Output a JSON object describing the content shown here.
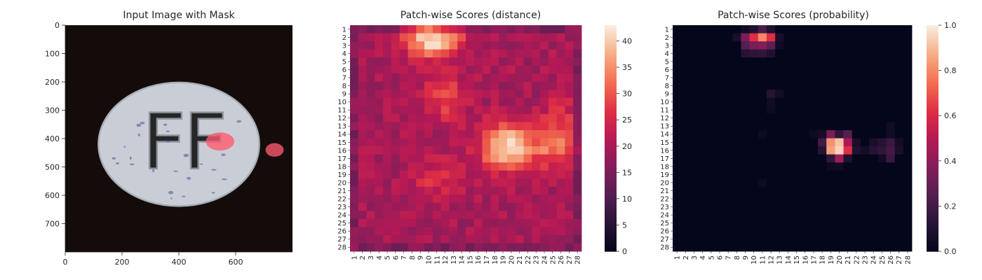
{
  "chart_data": [
    {
      "type": "image",
      "title": "Input Image with Mask",
      "x_ticks": [
        "0",
        "200",
        "400",
        "600"
      ],
      "x_tick_values": [
        0,
        200,
        400,
        600
      ],
      "y_ticks": [
        "0",
        "100",
        "200",
        "300",
        "400",
        "500",
        "600",
        "700"
      ],
      "y_tick_values": [
        0,
        100,
        200,
        300,
        400,
        500,
        600,
        700
      ],
      "xlim": [
        0,
        800
      ],
      "ylim": [
        800,
        0
      ],
      "pill_embossed_text": "FF",
      "background_color": "#140c0a",
      "pill_color": "#c9ced6",
      "mask_color": "#ff5a6e",
      "mask_regions": [
        {
          "cx": 545,
          "cy": 410,
          "rx": 50,
          "ry": 32
        },
        {
          "cx": 737,
          "cy": 440,
          "rx": 32,
          "ry": 24
        }
      ]
    },
    {
      "type": "heatmap",
      "title": "Patch-wise Scores (distance)",
      "x_ticks": [
        "1",
        "2",
        "3",
        "4",
        "5",
        "6",
        "7",
        "8",
        "9",
        "10",
        "11",
        "12",
        "13",
        "14",
        "15",
        "16",
        "17",
        "18",
        "19",
        "20",
        "21",
        "22",
        "23",
        "24",
        "25",
        "26",
        "27",
        "28"
      ],
      "y_ticks": [
        "1",
        "2",
        "3",
        "4",
        "5",
        "6",
        "7",
        "8",
        "9",
        "10",
        "11",
        "12",
        "13",
        "14",
        "15",
        "16",
        "17",
        "18",
        "19",
        "20",
        "21",
        "22",
        "23",
        "24",
        "25",
        "26",
        "27",
        "28"
      ],
      "colorbar_ticks": [
        "0",
        "5",
        "10",
        "15",
        "20",
        "25",
        "30",
        "35",
        "40"
      ],
      "colorbar_tick_values": [
        0,
        5,
        10,
        15,
        20,
        25,
        30,
        35,
        40
      ],
      "vmin": 0,
      "vmax": 43,
      "colormap": "rocket",
      "base": 20,
      "hotspots": [
        {
          "r": 2.3,
          "c": 10.5,
          "peak": 22,
          "sr": 1.6,
          "sc": 2.3
        },
        {
          "r": 15.5,
          "c": 19.5,
          "peak": 22,
          "sr": 2.0,
          "sc": 2.2
        },
        {
          "r": 15.5,
          "c": 25.0,
          "peak": 12,
          "sr": 1.8,
          "sc": 1.6
        },
        {
          "r": 9.5,
          "c": 12.0,
          "peak": 9,
          "sr": 2.0,
          "sc": 1.8
        },
        {
          "r": 19.5,
          "c": 11.0,
          "peak": 7,
          "sr": 1.6,
          "sc": 2.0
        },
        {
          "r": 12.0,
          "c": 26.0,
          "peak": 6,
          "sr": 2.0,
          "sc": 1.5
        }
      ]
    },
    {
      "type": "heatmap",
      "title": "Patch-wise Scores (probability)",
      "x_ticks": [
        "1",
        "2",
        "3",
        "4",
        "5",
        "6",
        "7",
        "8",
        "9",
        "10",
        "11",
        "12",
        "13",
        "14",
        "15",
        "16",
        "17",
        "18",
        "19",
        "20",
        "21",
        "22",
        "23",
        "24",
        "25",
        "26",
        "27",
        "28"
      ],
      "y_ticks": [
        "1",
        "2",
        "3",
        "4",
        "5",
        "6",
        "7",
        "8",
        "9",
        "10",
        "11",
        "12",
        "13",
        "14",
        "15",
        "16",
        "17",
        "18",
        "19",
        "20",
        "21",
        "22",
        "23",
        "24",
        "25",
        "26",
        "27",
        "28"
      ],
      "colorbar_ticks": [
        "0.0",
        "0.2",
        "0.4",
        "0.6",
        "0.8",
        "1.0"
      ],
      "colorbar_tick_values": [
        0,
        0.2,
        0.4,
        0.6,
        0.8,
        1.0
      ],
      "vmin": 0,
      "vmax": 1,
      "colormap": "rocket",
      "cells": [
        {
          "r": 1,
          "c": 9,
          "v": 0.05
        },
        {
          "r": 1,
          "c": 10,
          "v": 0.1
        },
        {
          "r": 1,
          "c": 11,
          "v": 0.22
        },
        {
          "r": 1,
          "c": 12,
          "v": 0.1
        },
        {
          "r": 2,
          "c": 8,
          "v": 0.08
        },
        {
          "r": 2,
          "c": 9,
          "v": 0.35
        },
        {
          "r": 2,
          "c": 10,
          "v": 0.62
        },
        {
          "r": 2,
          "c": 11,
          "v": 0.8
        },
        {
          "r": 2,
          "c": 12,
          "v": 0.62
        },
        {
          "r": 2,
          "c": 13,
          "v": 0.08
        },
        {
          "r": 3,
          "c": 9,
          "v": 0.25
        },
        {
          "r": 3,
          "c": 10,
          "v": 0.35
        },
        {
          "r": 3,
          "c": 11,
          "v": 0.38
        },
        {
          "r": 3,
          "c": 12,
          "v": 0.28
        },
        {
          "r": 3,
          "c": 13,
          "v": 0.05
        },
        {
          "r": 4,
          "c": 9,
          "v": 0.12
        },
        {
          "r": 4,
          "c": 10,
          "v": 0.14
        },
        {
          "r": 4,
          "c": 11,
          "v": 0.15
        },
        {
          "r": 4,
          "c": 12,
          "v": 0.1
        },
        {
          "r": 9,
          "c": 12,
          "v": 0.12
        },
        {
          "r": 9,
          "c": 13,
          "v": 0.06
        },
        {
          "r": 10,
          "c": 12,
          "v": 0.05
        },
        {
          "r": 11,
          "c": 12,
          "v": 0.04
        },
        {
          "r": 14,
          "c": 19,
          "v": 0.35
        },
        {
          "r": 14,
          "c": 20,
          "v": 0.15
        },
        {
          "r": 14,
          "c": 21,
          "v": 0.25
        },
        {
          "r": 14,
          "c": 18,
          "v": 0.06
        },
        {
          "r": 14,
          "c": 17,
          "v": 0.04
        },
        {
          "r": 15,
          "c": 18,
          "v": 0.2
        },
        {
          "r": 15,
          "c": 19,
          "v": 0.82
        },
        {
          "r": 15,
          "c": 20,
          "v": 0.92
        },
        {
          "r": 15,
          "c": 21,
          "v": 0.48
        },
        {
          "r": 15,
          "c": 22,
          "v": 0.08
        },
        {
          "r": 15,
          "c": 24,
          "v": 0.08
        },
        {
          "r": 15,
          "c": 25,
          "v": 0.12
        },
        {
          "r": 15,
          "c": 26,
          "v": 0.18
        },
        {
          "r": 15,
          "c": 27,
          "v": 0.06
        },
        {
          "r": 16,
          "c": 18,
          "v": 0.12
        },
        {
          "r": 16,
          "c": 19,
          "v": 0.85
        },
        {
          "r": 16,
          "c": 20,
          "v": 0.95
        },
        {
          "r": 16,
          "c": 21,
          "v": 0.62
        },
        {
          "r": 16,
          "c": 22,
          "v": 0.1
        },
        {
          "r": 16,
          "c": 24,
          "v": 0.12
        },
        {
          "r": 16,
          "c": 25,
          "v": 0.15
        },
        {
          "r": 16,
          "c": 26,
          "v": 0.2
        },
        {
          "r": 16,
          "c": 27,
          "v": 0.08
        },
        {
          "r": 16,
          "c": 23,
          "v": 0.06
        },
        {
          "r": 17,
          "c": 19,
          "v": 0.15
        },
        {
          "r": 17,
          "c": 20,
          "v": 0.45
        },
        {
          "r": 17,
          "c": 21,
          "v": 0.1
        },
        {
          "r": 17,
          "c": 26,
          "v": 0.18
        },
        {
          "r": 17,
          "c": 25,
          "v": 0.05
        },
        {
          "r": 18,
          "c": 20,
          "v": 0.05
        },
        {
          "r": 18,
          "c": 19,
          "v": 0.04
        },
        {
          "r": 13,
          "c": 26,
          "v": 0.05
        },
        {
          "r": 14,
          "c": 26,
          "v": 0.05
        },
        {
          "r": 14,
          "c": 11,
          "v": 0.04
        },
        {
          "r": 20,
          "c": 11,
          "v": 0.04
        }
      ]
    }
  ]
}
